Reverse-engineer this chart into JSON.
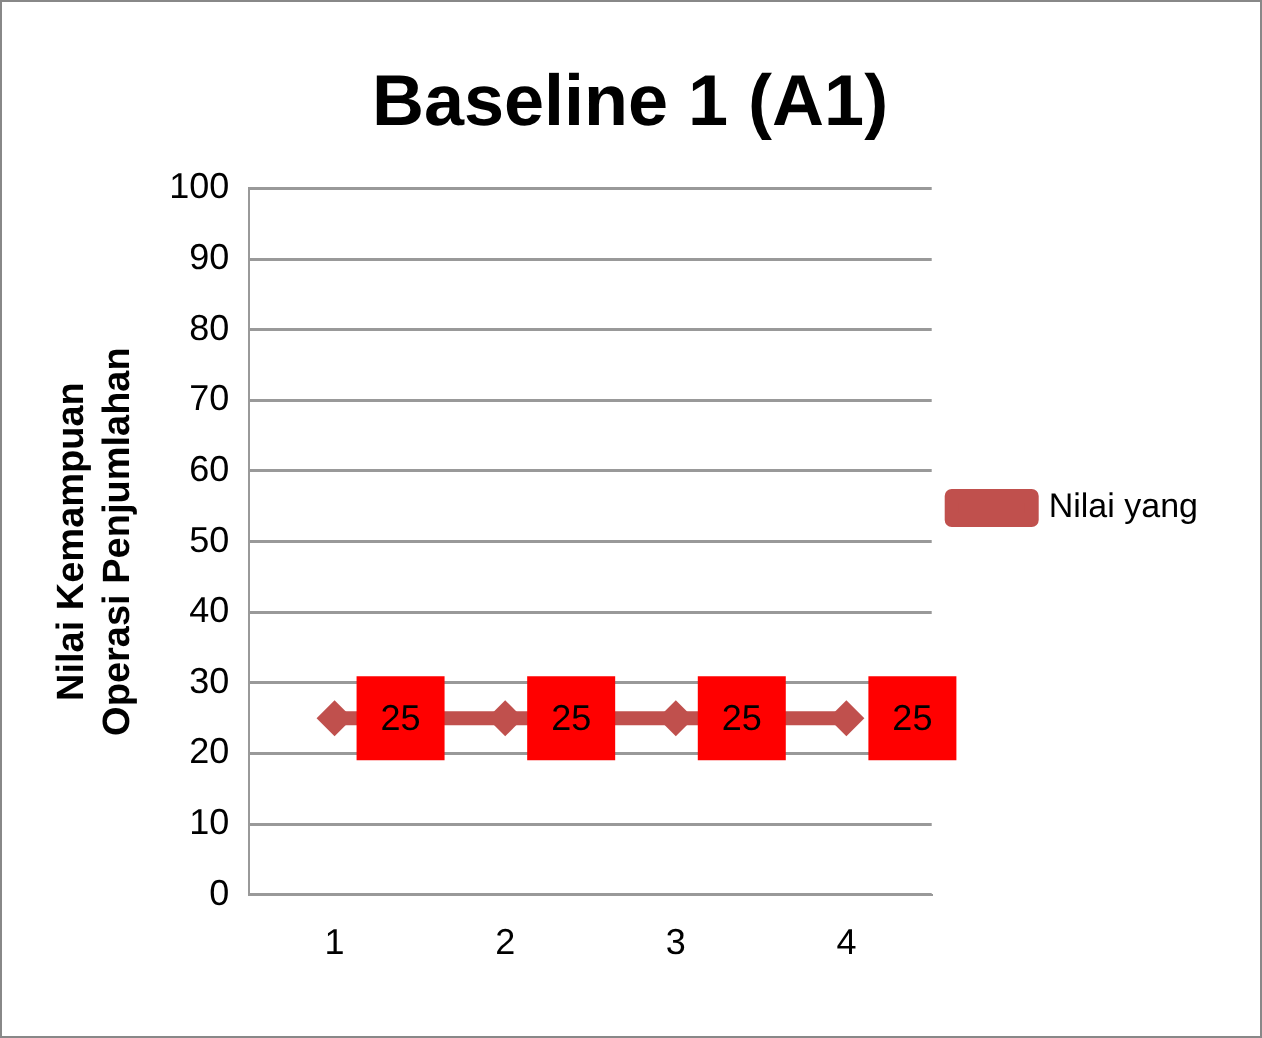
{
  "chart_data": {
    "type": "line",
    "title": "Baseline 1 (A1)",
    "ylabel": "Nilai Kemampuan Operasi Penjumlahan",
    "categories": [
      "1",
      "2",
      "3",
      "4"
    ],
    "series": [
      {
        "name": "Nilai yang",
        "color": "#c0504d",
        "values": [
          25,
          25,
          25,
          25
        ]
      }
    ],
    "ylim": [
      0,
      100
    ],
    "yticks": [
      0,
      10,
      20,
      30,
      40,
      50,
      60,
      70,
      80,
      90,
      100
    ],
    "grid": "y",
    "legend": "right",
    "marker": "diamond",
    "data_labels": true
  }
}
